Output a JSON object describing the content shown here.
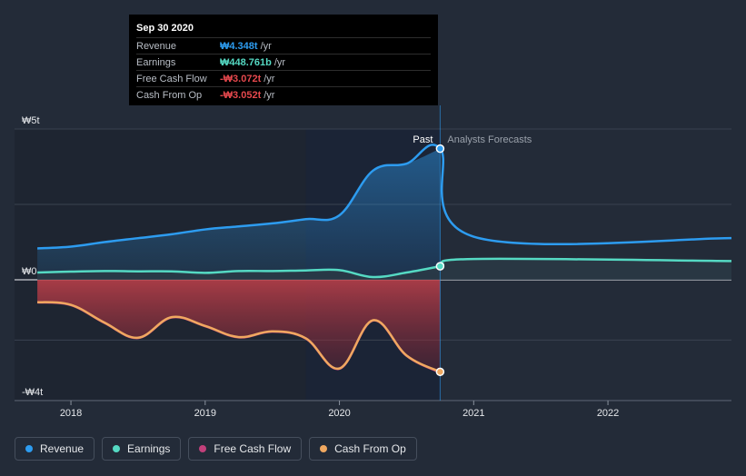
{
  "tooltip": {
    "date": "Sep 30 2020",
    "rows": [
      {
        "label": "Revenue",
        "value": "₩4.348t",
        "unit": "/yr",
        "color": "#2d9cf0"
      },
      {
        "label": "Earnings",
        "value": "₩448.761b",
        "unit": "/yr",
        "color": "#55d9c3"
      },
      {
        "label": "Free Cash Flow",
        "value": "-₩3.072t",
        "unit": "/yr",
        "color": "#e5484d"
      },
      {
        "label": "Cash From Op",
        "value": "-₩3.052t",
        "unit": "/yr",
        "color": "#e5484d"
      }
    ]
  },
  "legend": [
    {
      "label": "Revenue",
      "color": "#2d9cf0"
    },
    {
      "label": "Earnings",
      "color": "#55d9c3"
    },
    {
      "label": "Free Cash Flow",
      "color": "#c2407b"
    },
    {
      "label": "Cash From Op",
      "color": "#f0a860"
    }
  ],
  "chart_data": {
    "type": "line",
    "y_ticks": [
      "₩5t",
      "₩0",
      "-₩4t"
    ],
    "x_ticks": [
      {
        "label": "2018",
        "x": 2018.0
      },
      {
        "label": "2019",
        "x": 2019.0
      },
      {
        "label": "2020",
        "x": 2020.0
      },
      {
        "label": "2021",
        "x": 2021.0
      },
      {
        "label": "2022",
        "x": 2022.0
      }
    ],
    "xlim": [
      2017.58,
      2022.92
    ],
    "ylim": [
      -4.0,
      5.0
    ],
    "past_label": "Past",
    "forecast_label": "Analysts Forecasts",
    "past_end": 2020.75,
    "highlight_start": 2019.75,
    "grid": true,
    "colors": {
      "revenue": "#2d9cf0",
      "earnings": "#55d9c3",
      "fcf": "#c2407b",
      "cfo": "#f0a860"
    },
    "series": [
      {
        "name": "Revenue",
        "key": "revenue",
        "x": [
          2017.75,
          2018.0,
          2018.25,
          2018.5,
          2018.75,
          2019.0,
          2019.25,
          2019.5,
          2019.75,
          2020.0,
          2020.25,
          2020.5,
          2020.75,
          2021.0,
          2022.92
        ],
        "y": [
          1.04,
          1.1,
          1.25,
          1.38,
          1.51,
          1.67,
          1.77,
          1.87,
          2.01,
          2.14,
          3.62,
          3.85,
          4.348,
          1.43,
          1.38
        ]
      },
      {
        "name": "Earnings",
        "key": "earnings",
        "x": [
          2017.75,
          2018.0,
          2018.25,
          2018.5,
          2018.75,
          2019.0,
          2019.25,
          2019.5,
          2019.75,
          2020.0,
          2020.25,
          2020.5,
          2020.75,
          2021.0,
          2022.92
        ],
        "y": [
          0.24,
          0.27,
          0.29,
          0.28,
          0.28,
          0.23,
          0.29,
          0.29,
          0.31,
          0.32,
          0.09,
          0.24,
          0.449,
          0.69,
          0.62
        ]
      },
      {
        "name": "Free Cash Flow",
        "key": "fcf",
        "x": [
          2017.75,
          2018.0,
          2018.25,
          2018.5,
          2018.75,
          2019.0,
          2019.25,
          2019.5,
          2019.75,
          2020.0,
          2020.25,
          2020.5,
          2020.75
        ],
        "y": [
          -0.75,
          -0.84,
          -1.43,
          -1.93,
          -1.25,
          -1.54,
          -1.91,
          -1.72,
          -1.95,
          -2.95,
          -1.35,
          -2.52,
          -3.072
        ]
      },
      {
        "name": "Cash From Op",
        "key": "cfo",
        "x": [
          2017.75,
          2018.0,
          2018.25,
          2018.5,
          2018.75,
          2019.0,
          2019.25,
          2019.5,
          2019.75,
          2020.0,
          2020.25,
          2020.5,
          2020.75
        ],
        "y": [
          -0.74,
          -0.83,
          -1.42,
          -1.92,
          -1.24,
          -1.53,
          -1.9,
          -1.71,
          -1.94,
          -2.94,
          -1.34,
          -2.51,
          -3.052
        ]
      }
    ]
  }
}
